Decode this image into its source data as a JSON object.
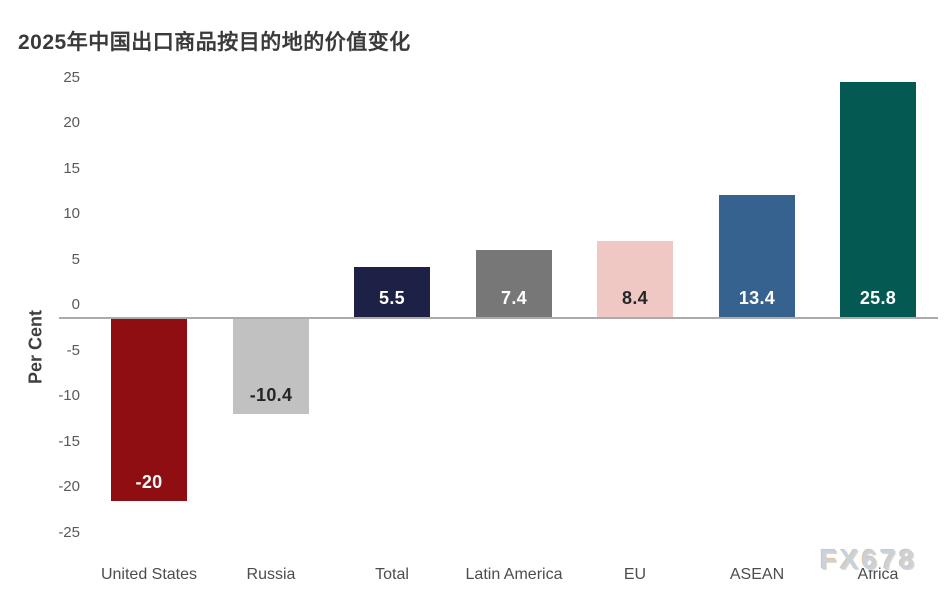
{
  "watermark": "FX678",
  "chart_data": {
    "type": "bar",
    "title": "2025年中国出口商品按目的地的价值变化",
    "xlabel": "",
    "ylabel": "Per Cent",
    "ylim": [
      -25,
      25
    ],
    "ytick_step": 5,
    "yticks": [
      25,
      20,
      15,
      10,
      5,
      0,
      -5,
      -10,
      -15,
      -20,
      -25
    ],
    "grid": false,
    "legend": false,
    "categories": [
      "United States",
      "Russia",
      "Total",
      "Latin America",
      "EU",
      "ASEAN",
      "Africa"
    ],
    "values": [
      -20,
      -10.4,
      5.5,
      7.4,
      8.4,
      13.4,
      25.8
    ],
    "value_labels": [
      "-20",
      "-10.4",
      "5.5",
      "7.4",
      "8.4",
      "13.4",
      "25.8"
    ],
    "bar_colors": [
      "#8F0E12",
      "#C1C1C1",
      "#1C2145",
      "#777777",
      "#EFC8C4",
      "#366290",
      "#045A53"
    ],
    "value_label_colors": [
      "#ffffff",
      "#262626",
      "#ffffff",
      "#ffffff",
      "#262626",
      "#ffffff",
      "#ffffff"
    ],
    "axis_line_color": "#ababab",
    "tick_label_color": "#595959",
    "category_label_color": "#4d4d4d",
    "title_color": "#3a3a3a",
    "watermark_color": "#c7d2de"
  }
}
